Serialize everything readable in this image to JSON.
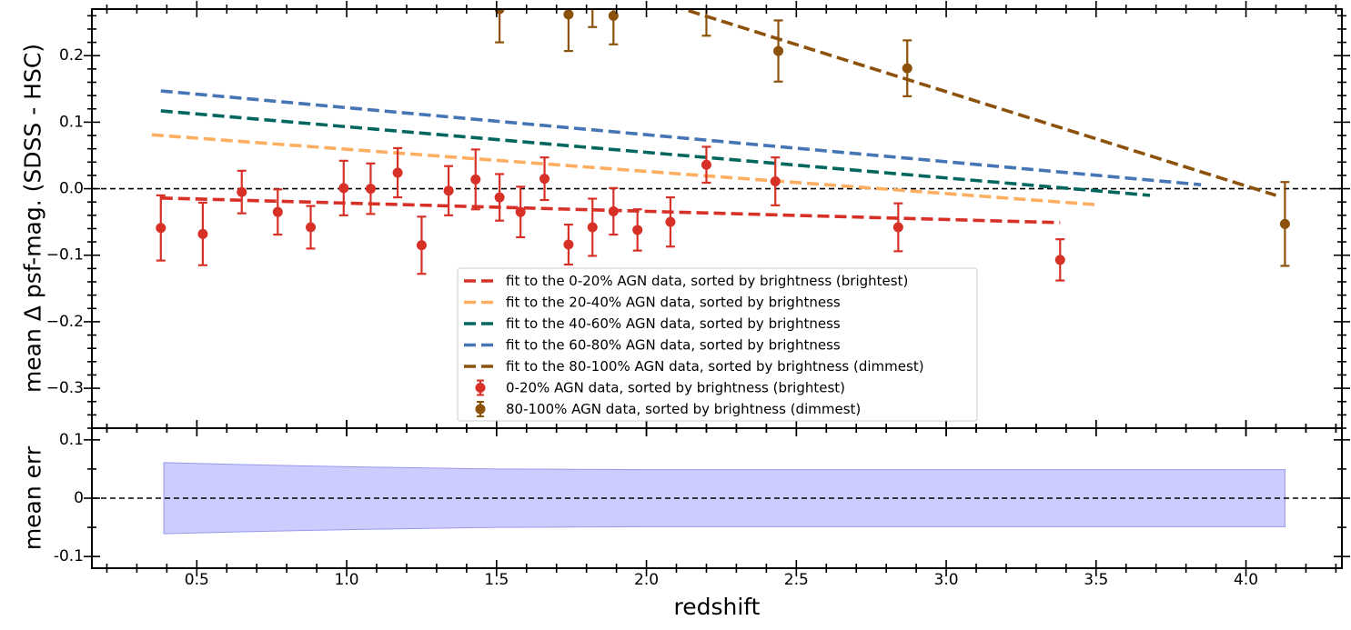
{
  "chart_data": [
    {
      "type": "scatter",
      "panel": "main",
      "xlabel": "redshift",
      "ylabel": "mean Δ psf-mag. (SDSS - HSC)",
      "xlim": [
        0.15,
        4.32
      ],
      "ylim": [
        -0.36,
        0.27
      ],
      "xticks": [
        0.5,
        1.0,
        1.5,
        2.0,
        2.5,
        3.0,
        3.5,
        4.0
      ],
      "xtick_labels": [
        "0.5",
        "1.0",
        "1.5",
        "2.0",
        "2.5",
        "3.0",
        "3.5",
        "4.0"
      ],
      "yticks": [
        -0.3,
        -0.2,
        -0.1,
        0.0,
        0.1,
        0.2
      ],
      "ytick_labels": [
        "−0.3",
        "−0.2",
        "−0.1",
        "0.0",
        "0.1",
        "0.2"
      ],
      "reference_line_y": 0,
      "legend_position": "lower-center",
      "fits": [
        {
          "name": "fit to the 0-20% AGN data, sorted by brightness (brightest)",
          "color": "#d73027",
          "x": [
            0.38,
            3.38
          ],
          "y": [
            -0.014,
            -0.051
          ]
        },
        {
          "name": "fit to the 20-40% AGN data, sorted by brightness",
          "color": "#fdae61",
          "x": [
            0.35,
            3.5
          ],
          "y": [
            0.081,
            -0.024
          ]
        },
        {
          "name": "fit to the 40-60% AGN data, sorted by brightness",
          "color": "#01665e",
          "x": [
            0.38,
            3.68
          ],
          "y": [
            0.117,
            -0.01
          ]
        },
        {
          "name": "fit to the 60-80% AGN data, sorted by brightness",
          "color": "#4575b4",
          "x": [
            0.38,
            3.85
          ],
          "y": [
            0.147,
            0.006
          ]
        },
        {
          "name": "fit to the 80-100% AGN data, sorted by brightness (dimmest)",
          "color": "#8c510a",
          "x": [
            1.7,
            4.1
          ],
          "y": [
            0.33,
            -0.01
          ]
        }
      ],
      "series": [
        {
          "name": "0-20% AGN data, sorted by brightness (brightest)",
          "color": "#d73027",
          "x": [
            0.38,
            0.52,
            0.65,
            0.77,
            0.88,
            0.99,
            1.08,
            1.17,
            1.25,
            1.34,
            1.43,
            1.51,
            1.58,
            1.66,
            1.74,
            1.82,
            1.89,
            1.97,
            2.08,
            2.2,
            2.43,
            2.84,
            3.38
          ],
          "y": [
            -0.059,
            -0.068,
            -0.005,
            -0.035,
            -0.058,
            0.001,
            0.0,
            0.024,
            -0.085,
            -0.003,
            0.014,
            -0.013,
            -0.035,
            0.015,
            -0.084,
            -0.058,
            -0.034,
            -0.062,
            -0.05,
            0.036,
            0.011,
            -0.058,
            -0.107
          ],
          "yerr": [
            0.049,
            0.047,
            0.032,
            0.034,
            0.032,
            0.041,
            0.038,
            0.037,
            0.043,
            0.037,
            0.045,
            0.035,
            0.038,
            0.032,
            0.03,
            0.043,
            0.035,
            0.031,
            0.037,
            0.027,
            0.036,
            0.036,
            0.031
          ]
        },
        {
          "name": "80-100% AGN data, sorted by brightness (dimmest)",
          "color": "#8c510a",
          "x": [
            1.51,
            1.74,
            1.82,
            1.89,
            2.2,
            2.44,
            2.87,
            4.13
          ],
          "y": [
            0.27,
            0.262,
            0.285,
            0.26,
            0.28,
            0.207,
            0.181,
            -0.053
          ],
          "yerr": [
            0.05,
            0.055,
            0.042,
            0.043,
            0.05,
            0.046,
            0.042,
            0.063
          ]
        }
      ]
    },
    {
      "type": "area",
      "panel": "residual",
      "xlabel": "redshift",
      "ylabel": "mean err",
      "xlim": [
        0.15,
        4.32
      ],
      "ylim": [
        -0.12,
        0.12
      ],
      "yticks": [
        -0.1,
        0,
        0.1
      ],
      "ytick_labels": [
        "-0.1",
        "0",
        "0.1"
      ],
      "reference_line_y": 0,
      "band": {
        "color": "#ccccff",
        "edge_color": "#9999ee",
        "x": [
          0.39,
          0.7,
          1.0,
          1.5,
          2.0,
          2.5,
          3.0,
          3.5,
          4.13
        ],
        "upper": [
          0.061,
          0.057,
          0.054,
          0.05,
          0.049,
          0.049,
          0.049,
          0.049,
          0.049
        ],
        "lower": [
          -0.061,
          -0.057,
          -0.054,
          -0.05,
          -0.049,
          -0.049,
          -0.049,
          -0.049,
          -0.049
        ]
      }
    }
  ]
}
